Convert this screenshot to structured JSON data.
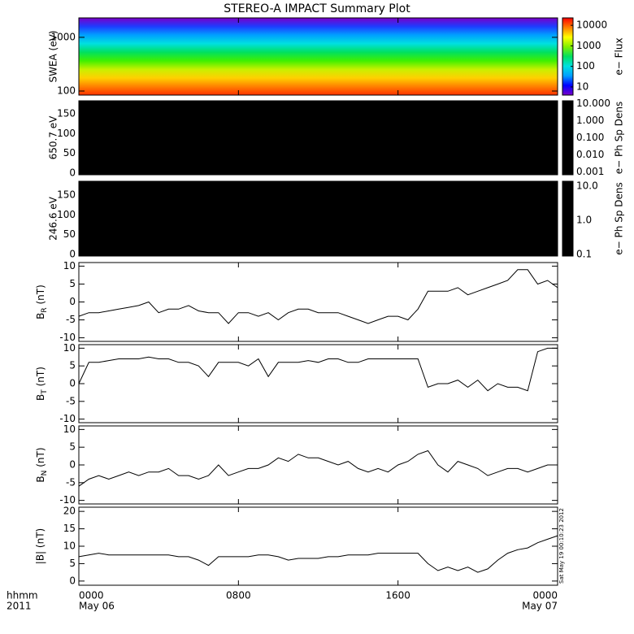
{
  "title": "STEREO-A IMPACT Summary Plot",
  "timestamp": "Sat May 19 00:10:23 2012",
  "x_axis": {
    "unit_label": "hhmm",
    "year": "2011",
    "xlim": [
      0,
      24
    ],
    "xticks": [
      {
        "value": 0,
        "label": "0000"
      },
      {
        "value": 8,
        "label": "0800"
      },
      {
        "value": 16,
        "label": "1600"
      },
      {
        "value": 24,
        "label": "0000"
      }
    ],
    "date_labels": [
      {
        "value": 0,
        "label": "May 06"
      },
      {
        "value": 24,
        "label": "May 07"
      }
    ]
  },
  "chart_data": [
    {
      "type": "spectrogram",
      "ylabel": "SWEA (eV)",
      "log": true,
      "ylim": [
        84,
        2300
      ],
      "yticks": [
        100,
        1000
      ],
      "colors": [
        "#7a00c8",
        "#1e3cff",
        "#00a0ff",
        "#00e0e0",
        "#00e060",
        "#40f000",
        "#c8f000",
        "#ffd000",
        "#ff8000",
        "#ff3000"
      ],
      "colorbar": {
        "label": "e− Flux",
        "log": true,
        "lim": [
          4,
          23000
        ],
        "ticks": [
          10,
          100,
          1000,
          10000
        ],
        "colors": [
          "#7a00c8",
          "#0000ff",
          "#00a0ff",
          "#00e0e0",
          "#00e060",
          "#80f000",
          "#ffff00",
          "#ff8000",
          "#ff0000"
        ]
      }
    },
    {
      "type": "spectrogram",
      "ylabel": "650.7 eV",
      "log": false,
      "ylim": [
        -4,
        183
      ],
      "yticks": [
        0,
        50,
        100,
        150
      ],
      "colors": [
        "#000000"
      ],
      "colorbar": {
        "label": "e− Ph Sp Dens",
        "log": true,
        "lim": [
          0.0007,
          15
        ],
        "ticks": [
          0.001,
          {
            "value": 0.01,
            "label": "0.010"
          },
          {
            "value": 0.1,
            "label": "0.100"
          },
          {
            "value": 1,
            "label": "1.000"
          },
          {
            "value": 10,
            "label": "10.000"
          }
        ],
        "colors": [
          "#000000"
        ]
      }
    },
    {
      "type": "spectrogram",
      "ylabel": "246.6 eV",
      "log": false,
      "ylim": [
        -4,
        185
      ],
      "yticks": [
        0,
        50,
        100,
        150
      ],
      "colors": [
        "#000000"
      ],
      "colorbar": {
        "label": "e− Ph Sp Dens",
        "log": true,
        "lim": [
          0.09,
          14
        ],
        "ticks": [
          0.1,
          {
            "value": 1,
            "label": "1.0"
          },
          {
            "value": 10,
            "label": "10.0"
          }
        ],
        "colors": [
          "#000000"
        ]
      }
    },
    {
      "type": "line",
      "ylabel": {
        "main": "B",
        "sub": "R",
        "unit": "(nT)"
      },
      "ylim": [
        -11,
        11
      ],
      "yticks": [
        -10,
        -5,
        0,
        5,
        10
      ],
      "color": "#000000",
      "x": [
        0,
        0.5,
        1,
        1.5,
        2,
        2.5,
        3,
        3.5,
        4,
        4.5,
        5,
        5.5,
        6,
        6.5,
        7,
        7.5,
        8,
        8.5,
        9,
        9.5,
        10,
        10.5,
        11,
        11.5,
        12,
        12.5,
        13,
        13.5,
        14,
        14.5,
        15,
        15.5,
        16,
        16.5,
        17,
        17.5,
        18,
        18.5,
        19,
        19.5,
        20,
        20.5,
        21,
        21.5,
        22,
        22.5,
        23,
        23.5,
        24
      ],
      "values": [
        -4,
        -3,
        -3,
        -2.5,
        -2,
        -1.5,
        -1,
        0,
        -3,
        -2,
        -2,
        -1,
        -2.5,
        -3,
        -3,
        -6,
        -3,
        -3,
        -4,
        -3,
        -5,
        -3,
        -2,
        -2,
        -3,
        -3,
        -3,
        -4,
        -5,
        -6,
        -5,
        -4,
        -4,
        -5,
        -2,
        3,
        3,
        3,
        4,
        2,
        3,
        4,
        5,
        6,
        9,
        9,
        5,
        6,
        4
      ]
    },
    {
      "type": "line",
      "ylabel": {
        "main": "B",
        "sub": "T",
        "unit": "(nT)"
      },
      "ylim": [
        -11,
        11
      ],
      "yticks": [
        -10,
        -5,
        0,
        5,
        10
      ],
      "color": "#000000",
      "x": [
        0,
        0.5,
        1,
        1.5,
        2,
        2.5,
        3,
        3.5,
        4,
        4.5,
        5,
        5.5,
        6,
        6.5,
        7,
        7.5,
        8,
        8.5,
        9,
        9.5,
        10,
        10.5,
        11,
        11.5,
        12,
        12.5,
        13,
        13.5,
        14,
        14.5,
        15,
        15.5,
        16,
        16.5,
        17,
        17.5,
        18,
        18.5,
        19,
        19.5,
        20,
        20.5,
        21,
        21.5,
        22,
        22.5,
        23,
        23.5,
        24
      ],
      "values": [
        0,
        6,
        6,
        6.5,
        7,
        7,
        7,
        7.5,
        7,
        7,
        6,
        6,
        5,
        2,
        6,
        6,
        6,
        5,
        7,
        2,
        6,
        6,
        6,
        6.5,
        6,
        7,
        7,
        6,
        6,
        7,
        7,
        7,
        7,
        7,
        7,
        -1,
        0,
        0,
        1,
        -1,
        1,
        -2,
        0,
        -1,
        -1,
        -2,
        9,
        10,
        10
      ]
    },
    {
      "type": "line",
      "ylabel": {
        "main": "B",
        "sub": "N",
        "unit": "(nT)"
      },
      "ylim": [
        -11,
        11
      ],
      "yticks": [
        -10,
        -5,
        0,
        5,
        10
      ],
      "color": "#000000",
      "x": [
        0,
        0.5,
        1,
        1.5,
        2,
        2.5,
        3,
        3.5,
        4,
        4.5,
        5,
        5.5,
        6,
        6.5,
        7,
        7.5,
        8,
        8.5,
        9,
        9.5,
        10,
        10.5,
        11,
        11.5,
        12,
        12.5,
        13,
        13.5,
        14,
        14.5,
        15,
        15.5,
        16,
        16.5,
        17,
        17.5,
        18,
        18.5,
        19,
        19.5,
        20,
        20.5,
        21,
        21.5,
        22,
        22.5,
        23,
        23.5,
        24
      ],
      "values": [
        -6,
        -4,
        -3,
        -4,
        -3,
        -2,
        -3,
        -2,
        -2,
        -1,
        -3,
        -3,
        -4,
        -3,
        0,
        -3,
        -2,
        -1,
        -1,
        0,
        2,
        1,
        3,
        2,
        2,
        1,
        0,
        1,
        -1,
        -2,
        -1,
        -2,
        0,
        1,
        3,
        4,
        0,
        -2,
        1,
        0,
        -1,
        -3,
        -2,
        -1,
        -1,
        -2,
        -1,
        0,
        0
      ]
    },
    {
      "type": "line",
      "ylabel": "|B| (nT)",
      "ylim": [
        -1.2,
        21.2
      ],
      "yticks": [
        0,
        5,
        10,
        15,
        20
      ],
      "color": "#000000",
      "x": [
        0,
        0.5,
        1,
        1.5,
        2,
        2.5,
        3,
        3.5,
        4,
        4.5,
        5,
        5.5,
        6,
        6.5,
        7,
        7.5,
        8,
        8.5,
        9,
        9.5,
        10,
        10.5,
        11,
        11.5,
        12,
        12.5,
        13,
        13.5,
        14,
        14.5,
        15,
        15.5,
        16,
        16.5,
        17,
        17.5,
        18,
        18.5,
        19,
        19.5,
        20,
        20.5,
        21,
        21.5,
        22,
        22.5,
        23,
        23.5,
        24
      ],
      "values": [
        7,
        7.5,
        8,
        7.5,
        7.5,
        7.5,
        7.5,
        7.5,
        7.5,
        7.5,
        7,
        7,
        6,
        4.5,
        7,
        7,
        7,
        7,
        7.5,
        7.5,
        7,
        6,
        6.5,
        6.5,
        6.5,
        7,
        7,
        7.5,
        7.5,
        7.5,
        8,
        8,
        8,
        8,
        8,
        5,
        3,
        4,
        3,
        4,
        2.5,
        3.5,
        6,
        8,
        9,
        9.5,
        11,
        12,
        13
      ]
    }
  ]
}
